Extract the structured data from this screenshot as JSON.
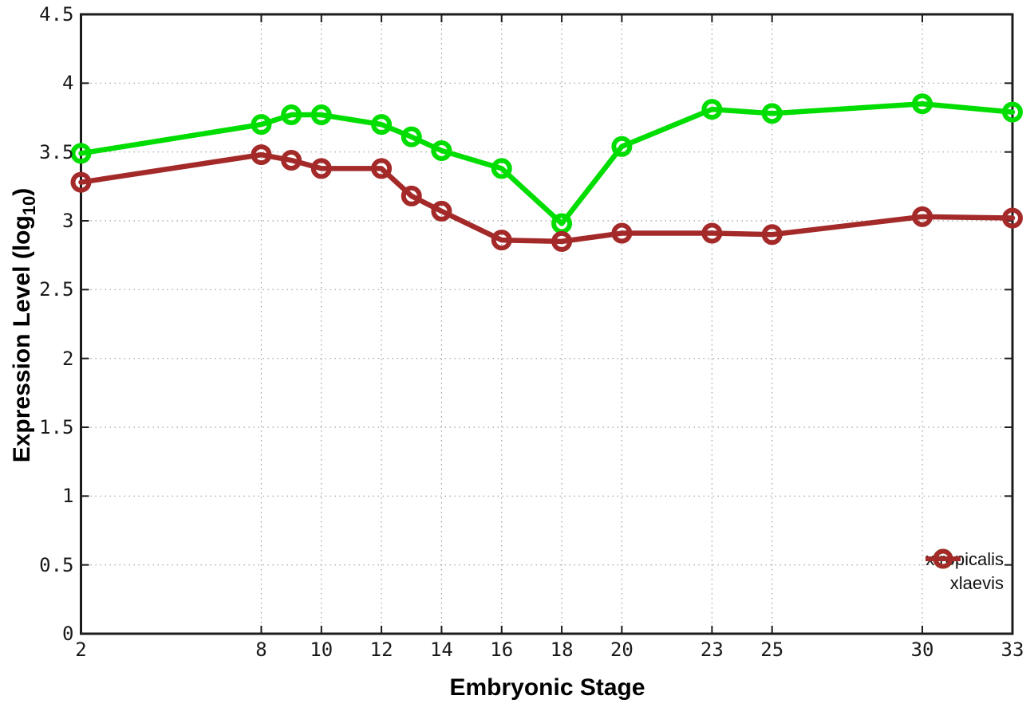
{
  "chart_data": {
    "type": "line",
    "title": "",
    "xlabel": "Embryonic Stage",
    "ylabel": "Expression Level (log10)",
    "x": [
      2,
      8,
      9,
      10,
      12,
      13,
      14,
      16,
      18,
      20,
      23,
      25,
      30,
      33
    ],
    "series": [
      {
        "name": "xtropicalis",
        "color": "#00dd00",
        "values": [
          3.49,
          3.7,
          3.77,
          3.77,
          3.7,
          3.61,
          3.51,
          3.38,
          2.98,
          3.54,
          3.81,
          3.78,
          3.85,
          3.79
        ]
      },
      {
        "name": "xlaevis",
        "color": "#a42a2a",
        "values": [
          3.28,
          3.48,
          3.44,
          3.38,
          3.38,
          3.18,
          3.07,
          2.86,
          2.85,
          2.91,
          2.91,
          2.9,
          3.03,
          3.02
        ]
      }
    ],
    "xlim": [
      2,
      33
    ],
    "ylim": [
      0,
      4.5
    ],
    "xticks": {
      "values": [
        2,
        8,
        10,
        12,
        14,
        16,
        18,
        20,
        23,
        25,
        30,
        33
      ],
      "labels": [
        "2",
        "8",
        "10",
        "12",
        "14",
        "16",
        "18",
        "20",
        "23",
        "25",
        "30",
        "33"
      ]
    },
    "yticks": {
      "values": [
        0,
        0.5,
        1,
        1.5,
        2,
        2.5,
        3,
        3.5,
        4,
        4.5
      ],
      "labels": [
        "0",
        "0.5",
        "1",
        "1.5",
        "2",
        "2.5",
        "3",
        "3.5",
        "4",
        "4.5"
      ]
    },
    "grid": true,
    "legend_position": "bottom-right",
    "marker": "open-circle"
  },
  "labels": {
    "xlabel": "Embryonic Stage",
    "ylabel_main": "Expression Level (log",
    "ylabel_sub": "10",
    "ylabel_close": ")"
  },
  "colors": {
    "background": "#ffffff",
    "border": "#1c1c1c",
    "grid": "#9e9e9e",
    "tick_text": "#1a1a1a"
  }
}
